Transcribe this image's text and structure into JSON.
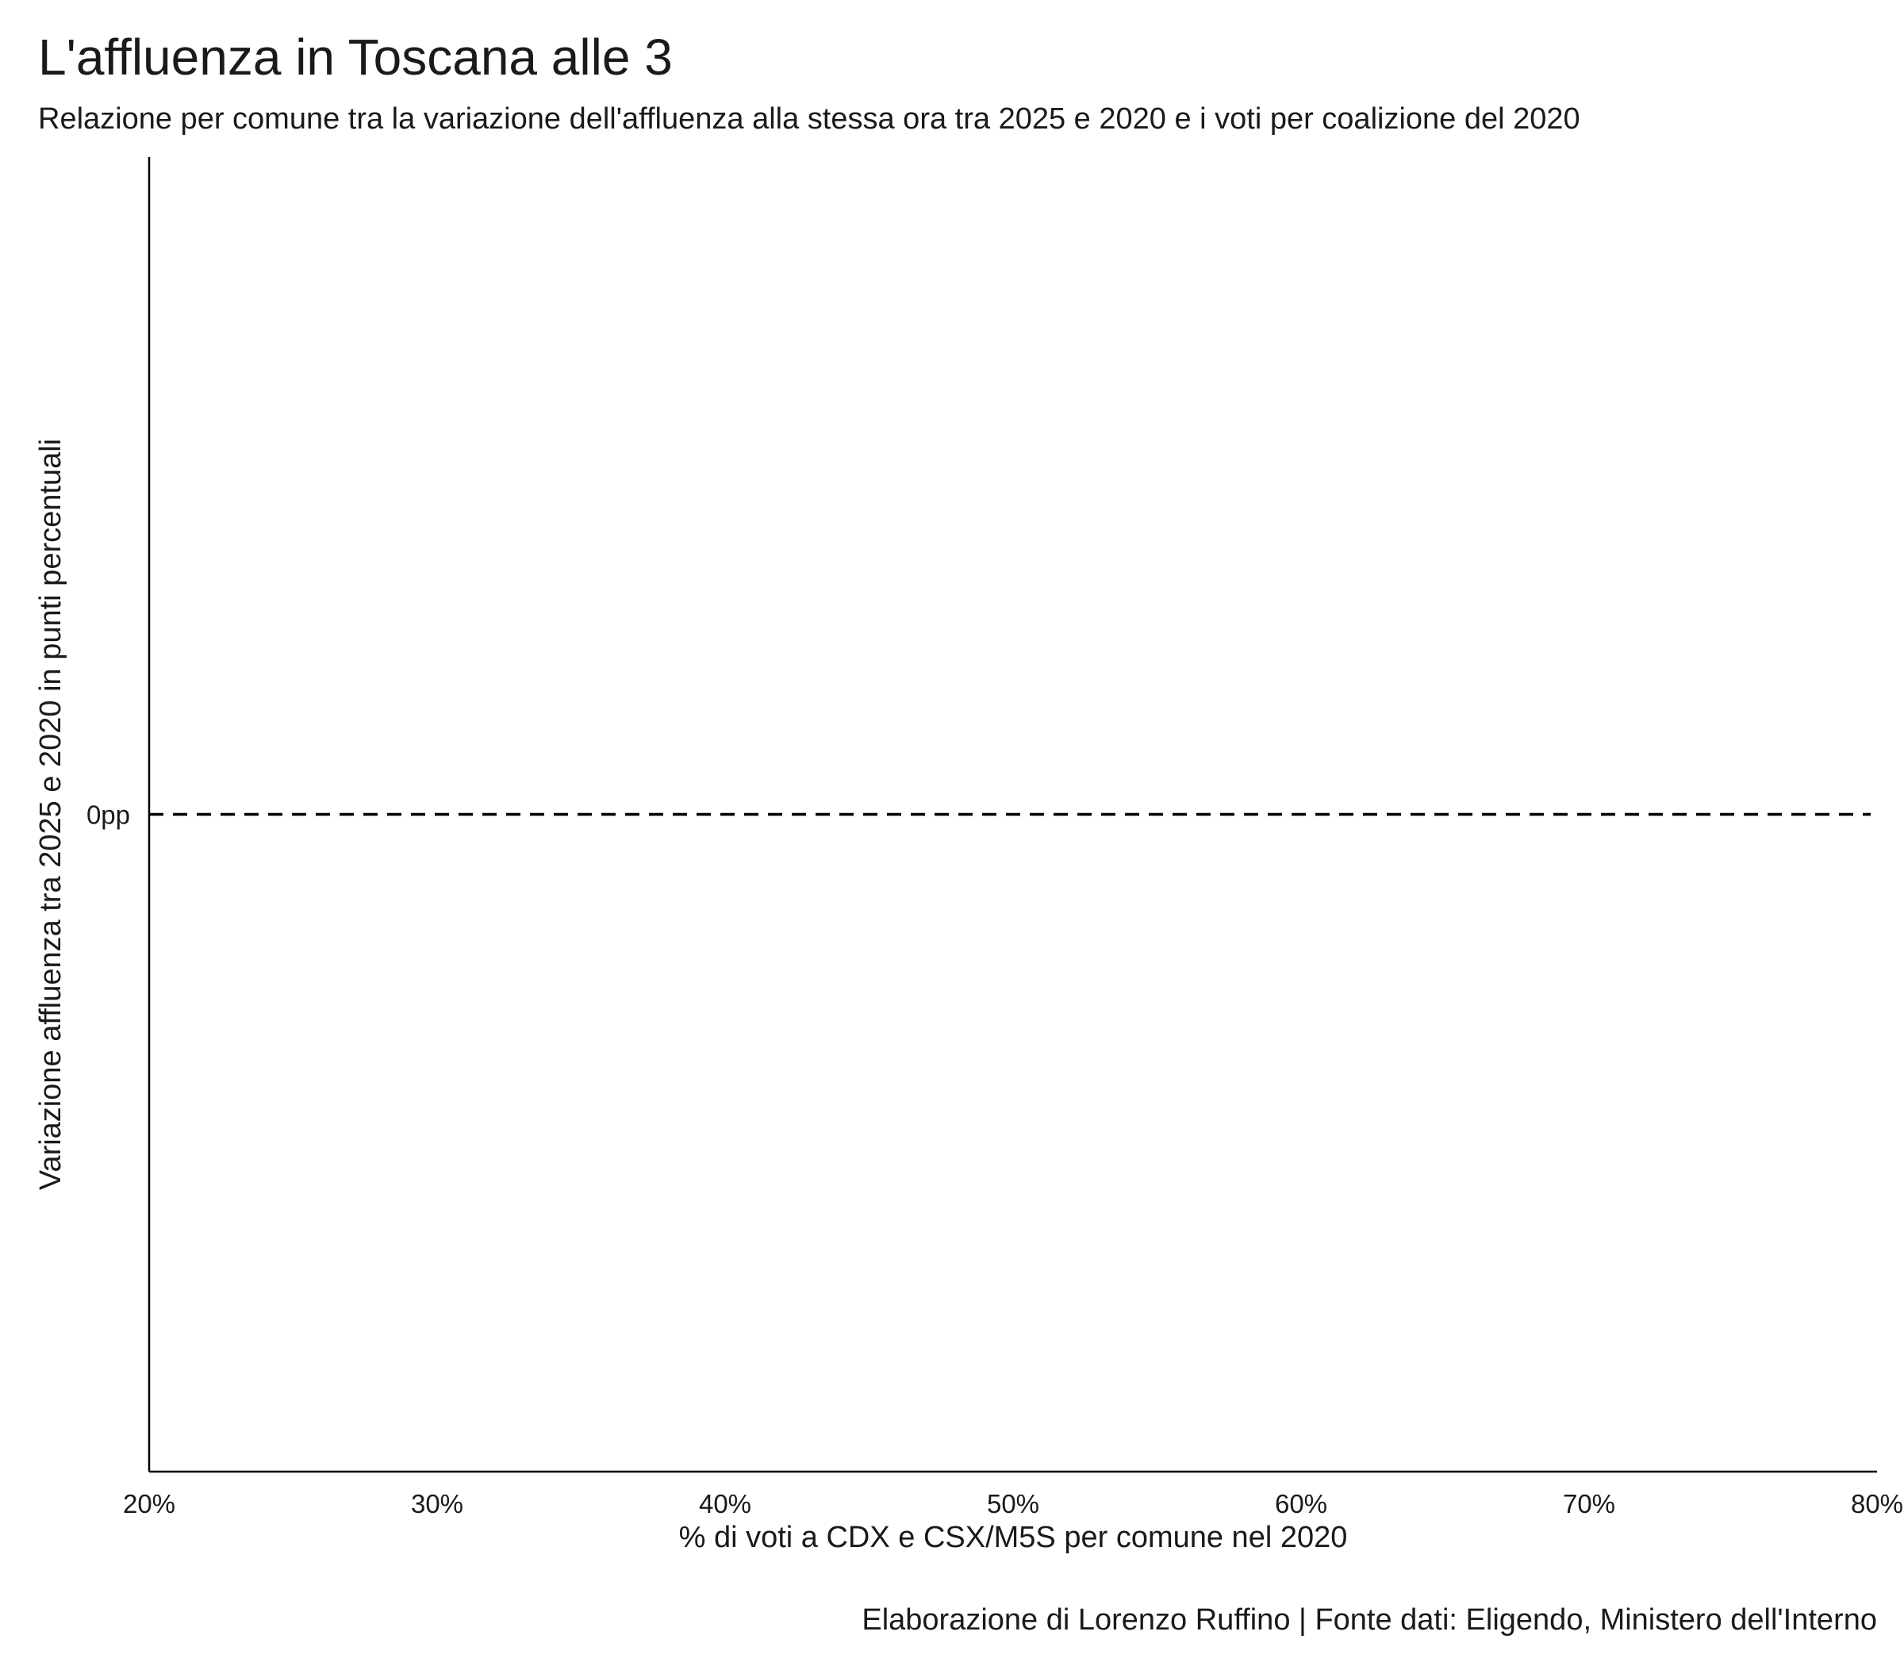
{
  "chart_data": {
    "type": "scatter",
    "title": "L'affluenza in Toscana alle 3",
    "subtitle": "Relazione per comune tra la variazione dell'affluenza alla stessa ora tra 2025 e 2020 e i voti per coalizione del 2020",
    "xlabel": "% di voti a CDX e CSX/M5S per comune nel 2020",
    "ylabel": "Variazione affluenza tra 2025 e 2020 in punti percentuali",
    "caption": "Elaborazione di Lorenzo Ruffino | Fonte dati: Eligendo, Ministero dell'Interno",
    "xlim": [
      20,
      80
    ],
    "ylim": [
      -1,
      1
    ],
    "x_ticks": [
      {
        "value": 20,
        "label": "20%"
      },
      {
        "value": 30,
        "label": "30%"
      },
      {
        "value": 40,
        "label": "40%"
      },
      {
        "value": 50,
        "label": "50%"
      },
      {
        "value": 60,
        "label": "60%"
      },
      {
        "value": 70,
        "label": "70%"
      },
      {
        "value": 80,
        "label": "80%"
      }
    ],
    "y_ticks": [
      {
        "value": 0,
        "label": "0pp"
      }
    ],
    "reference_line": {
      "axis": "y",
      "value": 0,
      "style": "dashed",
      "color": "#000000"
    },
    "grid": false,
    "series": []
  }
}
